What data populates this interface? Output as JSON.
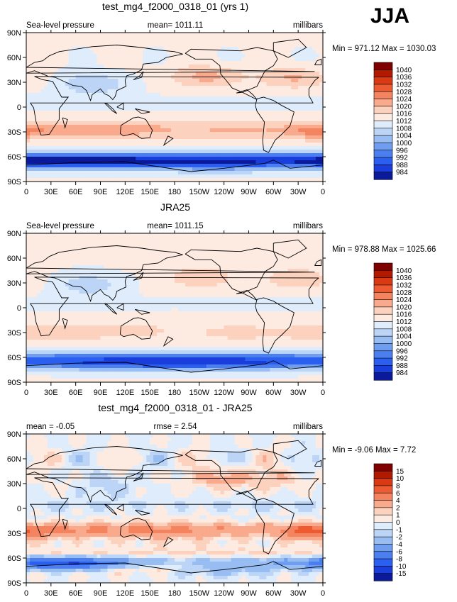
{
  "season": "JJA",
  "chart_data": [
    {
      "type": "contour-map",
      "id": "model",
      "title": "test_mg4_f2000_0318_01 (yrs 1)",
      "left_label": "Sea-level pressure",
      "center_label": "mean=  1011.11",
      "right_label": "millibars",
      "min_max_label": "Min = 971.12  Max = 1030.03",
      "min": 971.12,
      "max": 1030.03,
      "mean": 1011.11,
      "field": "model",
      "x_ticks": [
        "0",
        "30E",
        "60E",
        "90E",
        "120E",
        "150E",
        "180",
        "150W",
        "120W",
        "90W",
        "60W",
        "30W",
        "0"
      ],
      "y_ticks": [
        "90N",
        "60N",
        "30N",
        "0",
        "30S",
        "60S",
        "90S"
      ],
      "colorbar_levels": [
        "1040",
        "1036",
        "1032",
        "1028",
        "1024",
        "1020",
        "1016",
        "1012",
        "1008",
        "1004",
        "1000",
        "996",
        "992",
        "988",
        "984"
      ],
      "colorbar_colors": [
        "#7f0000",
        "#b21a00",
        "#d93a14",
        "#ec5b32",
        "#f48460",
        "#f9a98c",
        "#fcd2bf",
        "#fdebe2",
        "#dfecfb",
        "#bcd5f7",
        "#98bdf2",
        "#6f9ef0",
        "#4b7ff0",
        "#2a5ff0",
        "#1a3edc",
        "#0a1a9a"
      ]
    },
    {
      "type": "contour-map",
      "id": "obs",
      "title": "JRA25",
      "left_label": "Sea-level pressure",
      "center_label": "mean=  1011.15",
      "right_label": "millibars",
      "min_max_label": "Min = 978.88  Max = 1025.66",
      "min": 978.88,
      "max": 1025.66,
      "mean": 1011.15,
      "field": "obs",
      "x_ticks": [
        "0",
        "30E",
        "60E",
        "90E",
        "120E",
        "150E",
        "180",
        "150W",
        "120W",
        "90W",
        "60W",
        "30W",
        "0"
      ],
      "y_ticks": [
        "90N",
        "60N",
        "30N",
        "0",
        "30S",
        "60S",
        "90S"
      ],
      "colorbar_levels": [
        "1040",
        "1036",
        "1032",
        "1028",
        "1024",
        "1020",
        "1016",
        "1012",
        "1008",
        "1004",
        "1000",
        "996",
        "992",
        "988",
        "984"
      ],
      "colorbar_colors": [
        "#7f0000",
        "#b21a00",
        "#d93a14",
        "#ec5b32",
        "#f48460",
        "#f9a98c",
        "#fcd2bf",
        "#fdebe2",
        "#dfecfb",
        "#bcd5f7",
        "#98bdf2",
        "#6f9ef0",
        "#4b7ff0",
        "#2a5ff0",
        "#1a3edc",
        "#0a1a9a"
      ]
    },
    {
      "type": "contour-map",
      "id": "diff",
      "title": "test_mg4_f2000_0318_01 - JRA25",
      "left_label": "mean =  -0.05",
      "center_label": "rmse =   2.54",
      "right_label": "millibars",
      "min_max_label": "Min =  -9.06  Max =   7.72",
      "min": -9.06,
      "max": 7.72,
      "mean": -0.05,
      "rmse": 2.54,
      "field": "diff",
      "x_ticks": [
        "0",
        "30E",
        "60E",
        "90E",
        "120E",
        "150E",
        "180",
        "150W",
        "120W",
        "90W",
        "60W",
        "30W",
        "0"
      ],
      "y_ticks": [
        "90N",
        "60N",
        "30N",
        "0",
        "30S",
        "60S",
        "90S"
      ],
      "colorbar_levels": [
        "15",
        "10",
        "8",
        "6",
        "4",
        "2",
        "1",
        "0",
        "-1",
        "-2",
        "-4",
        "-6",
        "-8",
        "-10",
        "-15"
      ],
      "colorbar_colors": [
        "#7f0000",
        "#b21a00",
        "#d93a14",
        "#ec5b32",
        "#f48460",
        "#f9a98c",
        "#fcd2bf",
        "#fdebe2",
        "#dfecfb",
        "#bcd5f7",
        "#98bdf2",
        "#6f9ef0",
        "#4b7ff0",
        "#2a5ff0",
        "#1a3edc",
        "#0a1a9a"
      ]
    }
  ]
}
